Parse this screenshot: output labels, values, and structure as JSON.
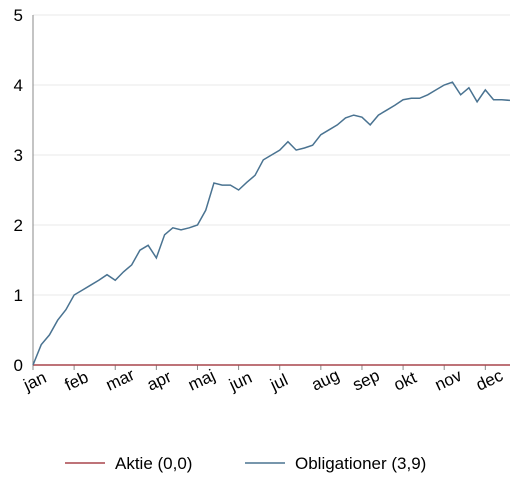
{
  "chart_data": {
    "type": "line",
    "x": [
      0,
      0.2,
      0.4,
      0.6,
      0.8,
      1,
      1.2,
      1.4,
      1.6,
      1.8,
      2,
      2.2,
      2.4,
      2.6,
      2.8,
      3,
      3.2,
      3.4,
      3.6,
      3.8,
      4,
      4.2,
      4.4,
      4.6,
      4.8,
      5,
      5.2,
      5.4,
      5.6,
      5.8,
      6,
      6.2,
      6.4,
      6.6,
      6.8,
      7,
      7.2,
      7.4,
      7.6,
      7.8,
      8,
      8.2,
      8.4,
      8.6,
      8.8,
      9,
      9.2,
      9.4,
      9.6,
      9.8,
      10,
      10.2,
      10.4,
      10.6,
      10.8,
      11,
      11.2,
      11.4,
      11.6
    ],
    "series": [
      {
        "name": "Aktie (0,0)",
        "color": "#a8454b",
        "values": [
          0,
          0,
          0,
          0,
          0,
          0,
          0,
          0,
          0,
          0,
          0,
          0,
          0,
          0,
          0,
          0,
          0,
          0,
          0,
          0,
          0,
          0,
          0,
          0,
          0,
          0,
          0,
          0,
          0,
          0,
          0,
          0,
          0,
          0,
          0,
          0,
          0,
          0,
          0,
          0,
          0,
          0,
          0,
          0,
          0,
          0,
          0,
          0,
          0,
          0,
          0,
          0,
          0,
          0,
          0,
          0,
          0,
          0,
          0
        ]
      },
      {
        "name": "Obligationer (3,9)",
        "color": "#4a7391",
        "values": [
          0,
          0.29,
          0.43,
          0.64,
          0.79,
          1.0,
          1.07,
          1.14,
          1.21,
          1.29,
          1.21,
          1.33,
          1.43,
          1.64,
          1.71,
          1.53,
          1.86,
          1.96,
          1.93,
          1.96,
          2.0,
          2.21,
          2.6,
          2.57,
          2.57,
          2.5,
          2.61,
          2.71,
          2.93,
          3.0,
          3.07,
          3.19,
          3.07,
          3.1,
          3.14,
          3.29,
          3.36,
          3.43,
          3.53,
          3.57,
          3.54,
          3.43,
          3.57,
          3.64,
          3.71,
          3.79,
          3.81,
          3.81,
          3.86,
          3.93,
          4.0,
          4.04,
          3.86,
          3.96,
          3.76,
          3.93,
          3.79,
          3.79,
          3.78
        ]
      }
    ],
    "xlim": [
      0,
      11.6
    ],
    "xticks": [
      {
        "value": 0,
        "label": "jan"
      },
      {
        "value": 1,
        "label": "feb"
      },
      {
        "value": 2,
        "label": "mar"
      },
      {
        "value": 3,
        "label": "apr"
      },
      {
        "value": 4,
        "label": "maj"
      },
      {
        "value": 5,
        "label": "jun"
      },
      {
        "value": 6,
        "label": "jul"
      },
      {
        "value": 7,
        "label": "aug"
      },
      {
        "value": 8,
        "label": "sep"
      },
      {
        "value": 9,
        "label": "okt"
      },
      {
        "value": 10,
        "label": "nov"
      },
      {
        "value": 11,
        "label": "dec"
      }
    ],
    "ylim": [
      0,
      5
    ],
    "yticks": [
      0,
      1,
      2,
      3,
      4,
      5
    ],
    "grid": true,
    "legend": "bottom"
  }
}
